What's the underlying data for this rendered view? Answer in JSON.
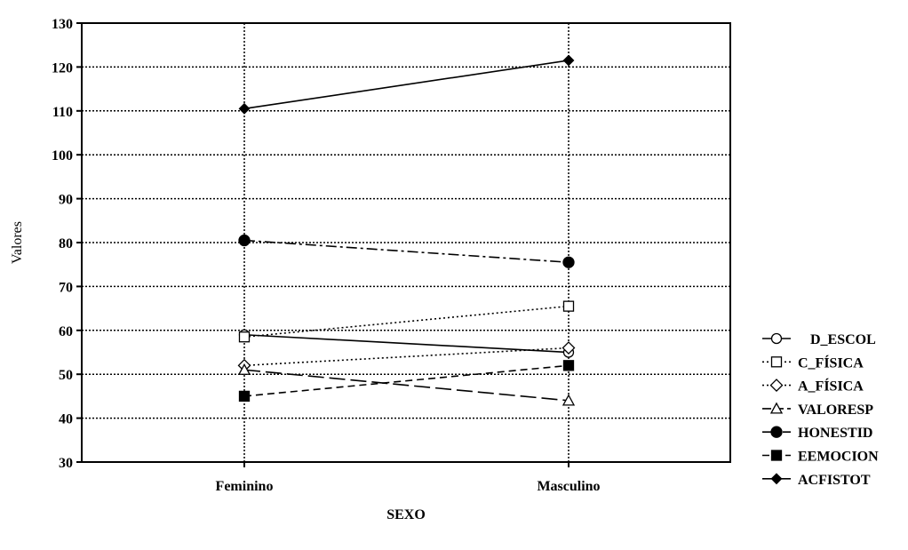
{
  "chart_data": {
    "type": "line",
    "categories": [
      "Feminino",
      "Masculino"
    ],
    "xlabel": "SEXO",
    "ylabel": "Valores",
    "ylim": [
      30,
      130
    ],
    "yticks": [
      30,
      40,
      50,
      60,
      70,
      80,
      90,
      100,
      110,
      120,
      130
    ],
    "grid": true,
    "legend_position": "right",
    "series": [
      {
        "name": "D_ESCOL",
        "values": [
          59,
          55
        ],
        "marker": "circle-open",
        "dash": "solid"
      },
      {
        "name": "C_FÍSICA",
        "values": [
          58.5,
          65.5
        ],
        "marker": "square-open",
        "dash": "dotted"
      },
      {
        "name": "A_FÍSICA",
        "values": [
          52,
          56
        ],
        "marker": "diamond-open",
        "dash": "dotted"
      },
      {
        "name": "VALORESP",
        "values": [
          51,
          44
        ],
        "marker": "triangle-open",
        "dash": "longdash"
      },
      {
        "name": "HONESTID",
        "values": [
          80.5,
          75.5
        ],
        "marker": "circle-filled",
        "dash": "dashdot"
      },
      {
        "name": "EEMOCION",
        "values": [
          45,
          52
        ],
        "marker": "square-filled",
        "dash": "dashed"
      },
      {
        "name": "ACFISTOT",
        "values": [
          110.5,
          121.5
        ],
        "marker": "diamond-filled",
        "dash": "solid"
      }
    ]
  }
}
